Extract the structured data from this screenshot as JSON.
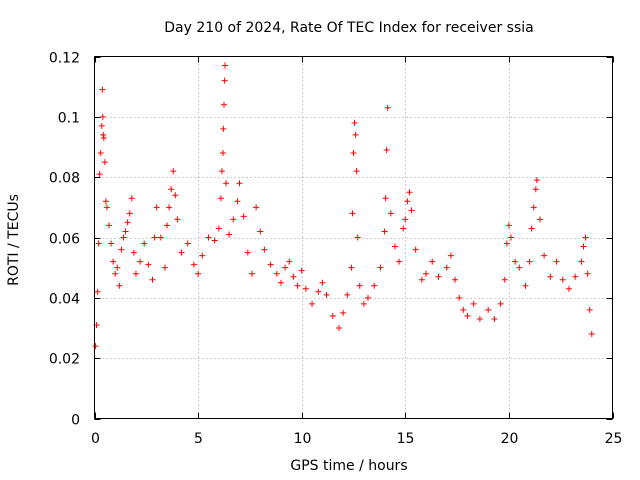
{
  "chart_data": {
    "type": "scatter",
    "title": "Day 210 of 2024, Rate Of TEC Index for receiver ssia",
    "xlabel": "GPS time / hours",
    "ylabel": "ROTI / TECUs",
    "xlim": [
      0,
      25
    ],
    "ylim": [
      0,
      0.12
    ],
    "xticks": [
      0,
      5,
      10,
      15,
      20,
      25
    ],
    "xtick_labels": [
      "0",
      "5",
      "10",
      "15",
      "20",
      "25"
    ],
    "yticks": [
      0,
      0.02,
      0.04,
      0.06,
      0.08,
      0.1,
      0.12
    ],
    "ytick_labels": [
      "0",
      "0.02",
      "0.04",
      "0.06",
      "0.08",
      "0.1",
      "0.12"
    ],
    "grid": true,
    "marker": "+",
    "marker_color": "#ff0000",
    "series": [
      {
        "name": "ROTI",
        "points": [
          [
            0.05,
            0.024
          ],
          [
            0.1,
            0.031
          ],
          [
            0.15,
            0.042
          ],
          [
            0.2,
            0.058
          ],
          [
            0.25,
            0.081
          ],
          [
            0.3,
            0.088
          ],
          [
            0.35,
            0.097
          ],
          [
            0.38,
            0.109
          ],
          [
            0.4,
            0.1
          ],
          [
            0.42,
            0.094
          ],
          [
            0.45,
            0.093
          ],
          [
            0.5,
            0.085
          ],
          [
            0.55,
            0.072
          ],
          [
            0.6,
            0.07
          ],
          [
            0.7,
            0.064
          ],
          [
            0.8,
            0.058
          ],
          [
            0.9,
            0.052
          ],
          [
            1.0,
            0.048
          ],
          [
            1.1,
            0.05
          ],
          [
            1.2,
            0.044
          ],
          [
            1.3,
            0.056
          ],
          [
            1.4,
            0.06
          ],
          [
            1.5,
            0.062
          ],
          [
            1.6,
            0.065
          ],
          [
            1.7,
            0.068
          ],
          [
            1.8,
            0.073
          ],
          [
            1.9,
            0.055
          ],
          [
            2.0,
            0.048
          ],
          [
            2.2,
            0.052
          ],
          [
            2.4,
            0.058
          ],
          [
            2.6,
            0.051
          ],
          [
            2.8,
            0.046
          ],
          [
            2.9,
            0.06
          ],
          [
            3.0,
            0.07
          ],
          [
            3.2,
            0.06
          ],
          [
            3.4,
            0.05
          ],
          [
            3.5,
            0.064
          ],
          [
            3.6,
            0.07
          ],
          [
            3.7,
            0.076
          ],
          [
            3.8,
            0.082
          ],
          [
            3.9,
            0.074
          ],
          [
            4.0,
            0.066
          ],
          [
            4.2,
            0.055
          ],
          [
            4.5,
            0.058
          ],
          [
            4.8,
            0.051
          ],
          [
            5.0,
            0.048
          ],
          [
            5.2,
            0.054
          ],
          [
            5.5,
            0.06
          ],
          [
            5.8,
            0.059
          ],
          [
            6.0,
            0.063
          ],
          [
            6.1,
            0.073
          ],
          [
            6.15,
            0.082
          ],
          [
            6.2,
            0.088
          ],
          [
            6.22,
            0.096
          ],
          [
            6.25,
            0.104
          ],
          [
            6.28,
            0.112
          ],
          [
            6.3,
            0.117
          ],
          [
            6.35,
            0.078
          ],
          [
            6.5,
            0.061
          ],
          [
            6.7,
            0.066
          ],
          [
            6.9,
            0.072
          ],
          [
            7.0,
            0.078
          ],
          [
            7.2,
            0.067
          ],
          [
            7.4,
            0.055
          ],
          [
            7.6,
            0.048
          ],
          [
            7.8,
            0.07
          ],
          [
            8.0,
            0.062
          ],
          [
            8.2,
            0.056
          ],
          [
            8.5,
            0.051
          ],
          [
            8.8,
            0.048
          ],
          [
            9.0,
            0.045
          ],
          [
            9.2,
            0.05
          ],
          [
            9.4,
            0.052
          ],
          [
            9.6,
            0.047
          ],
          [
            9.8,
            0.044
          ],
          [
            10.0,
            0.049
          ],
          [
            10.2,
            0.043
          ],
          [
            10.5,
            0.038
          ],
          [
            10.8,
            0.042
          ],
          [
            11.0,
            0.045
          ],
          [
            11.2,
            0.041
          ],
          [
            11.5,
            0.034
          ],
          [
            11.8,
            0.03
          ],
          [
            12.0,
            0.035
          ],
          [
            12.2,
            0.041
          ],
          [
            12.4,
            0.05
          ],
          [
            12.45,
            0.068
          ],
          [
            12.5,
            0.088
          ],
          [
            12.55,
            0.098
          ],
          [
            12.6,
            0.094
          ],
          [
            12.65,
            0.082
          ],
          [
            12.7,
            0.06
          ],
          [
            12.8,
            0.044
          ],
          [
            13.0,
            0.038
          ],
          [
            13.2,
            0.04
          ],
          [
            13.5,
            0.044
          ],
          [
            13.8,
            0.05
          ],
          [
            14.0,
            0.062
          ],
          [
            14.05,
            0.073
          ],
          [
            14.1,
            0.089
          ],
          [
            14.15,
            0.103
          ],
          [
            14.3,
            0.068
          ],
          [
            14.5,
            0.057
          ],
          [
            14.7,
            0.052
          ],
          [
            14.9,
            0.063
          ],
          [
            15.0,
            0.066
          ],
          [
            15.1,
            0.072
          ],
          [
            15.2,
            0.075
          ],
          [
            15.3,
            0.069
          ],
          [
            15.5,
            0.056
          ],
          [
            15.8,
            0.046
          ],
          [
            16.0,
            0.048
          ],
          [
            16.3,
            0.052
          ],
          [
            16.6,
            0.047
          ],
          [
            17.0,
            0.05
          ],
          [
            17.2,
            0.054
          ],
          [
            17.4,
            0.046
          ],
          [
            17.6,
            0.04
          ],
          [
            17.8,
            0.036
          ],
          [
            18.0,
            0.034
          ],
          [
            18.3,
            0.038
          ],
          [
            18.6,
            0.033
          ],
          [
            19.0,
            0.036
          ],
          [
            19.3,
            0.033
          ],
          [
            19.6,
            0.038
          ],
          [
            19.8,
            0.046
          ],
          [
            19.9,
            0.058
          ],
          [
            20.0,
            0.064
          ],
          [
            20.1,
            0.06
          ],
          [
            20.3,
            0.052
          ],
          [
            20.5,
            0.05
          ],
          [
            20.8,
            0.044
          ],
          [
            21.0,
            0.052
          ],
          [
            21.1,
            0.063
          ],
          [
            21.2,
            0.07
          ],
          [
            21.3,
            0.076
          ],
          [
            21.35,
            0.079
          ],
          [
            21.5,
            0.066
          ],
          [
            21.7,
            0.054
          ],
          [
            22.0,
            0.047
          ],
          [
            22.3,
            0.052
          ],
          [
            22.6,
            0.046
          ],
          [
            22.9,
            0.043
          ],
          [
            23.2,
            0.047
          ],
          [
            23.5,
            0.052
          ],
          [
            23.6,
            0.057
          ],
          [
            23.7,
            0.06
          ],
          [
            23.8,
            0.048
          ],
          [
            23.9,
            0.036
          ],
          [
            24.0,
            0.028
          ]
        ]
      }
    ]
  }
}
